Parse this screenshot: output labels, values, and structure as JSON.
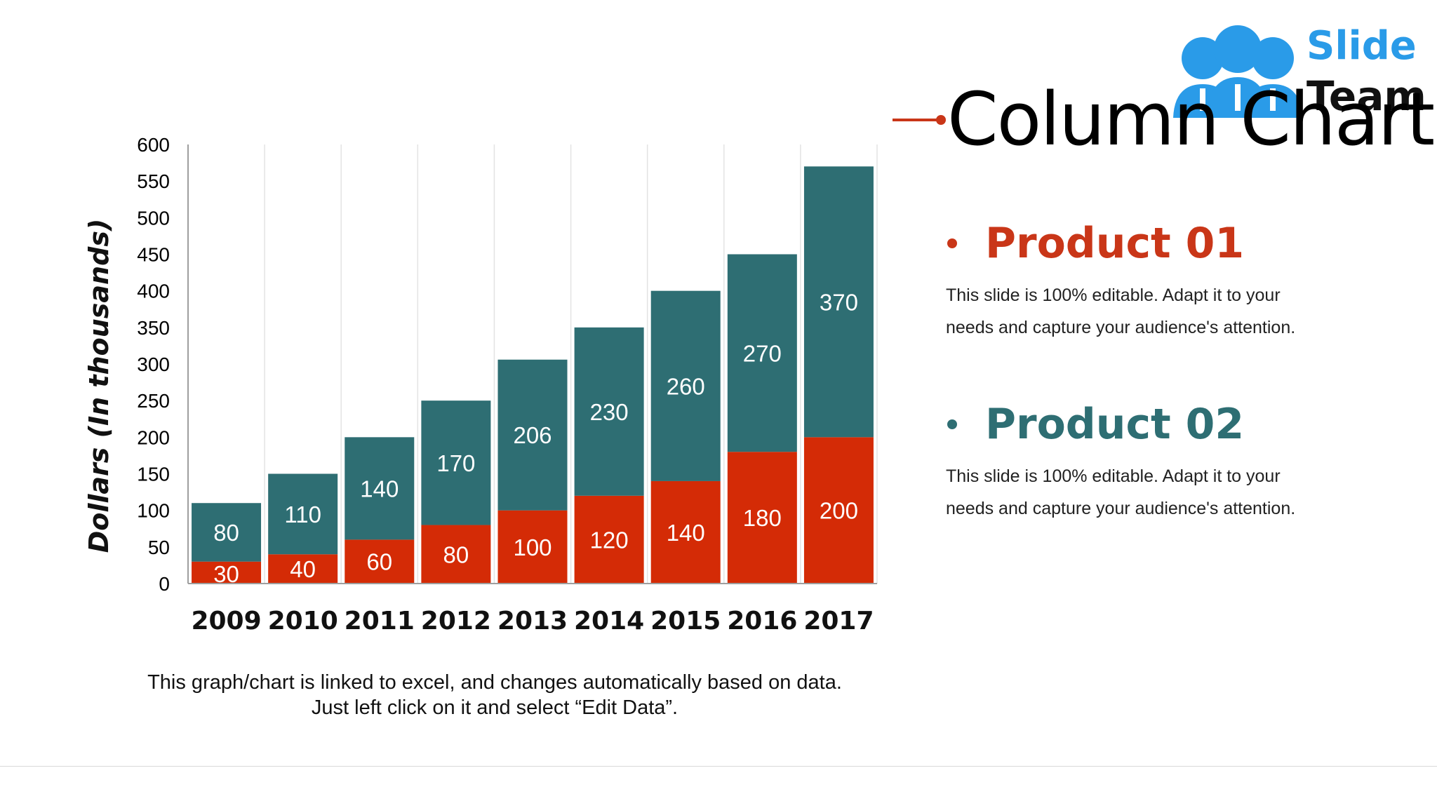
{
  "slide": {
    "title": "Column Chart",
    "footnote": "This graph/chart is linked to excel, and changes automatically based on data. Just left click on it and select “Edit Data”.",
    "logo": {
      "line1": "Slide",
      "line2": "Team"
    },
    "products": [
      {
        "name": "Product 01",
        "description": "This slide is 100% editable. Adapt it to your needs and capture your audience's attention.",
        "color": "#c93618"
      },
      {
        "name": "Product 02",
        "description": "This slide is 100% editable. Adapt it to your needs and capture your audience's attention.",
        "color": "#2e6e73"
      }
    ]
  },
  "chart_data": {
    "type": "bar",
    "stacked": true,
    "categories": [
      "2009",
      "2010",
      "2011",
      "2012",
      "2013",
      "2014",
      "2015",
      "2016",
      "2017"
    ],
    "series": [
      {
        "color": "#d42b06",
        "values": [
          30,
          40,
          60,
          80,
          100,
          120,
          140,
          180,
          200
        ]
      },
      {
        "color": "#2e6e73",
        "values": [
          80,
          110,
          140,
          170,
          206,
          230,
          260,
          270,
          370
        ]
      }
    ],
    "title": "",
    "xlabel": "",
    "ylabel": "Dollars (In thousands)",
    "ylim": [
      0,
      600
    ],
    "yticks": [
      0,
      50,
      100,
      150,
      200,
      250,
      300,
      350,
      400,
      450,
      500,
      550,
      600
    ],
    "grid": "vertical"
  }
}
